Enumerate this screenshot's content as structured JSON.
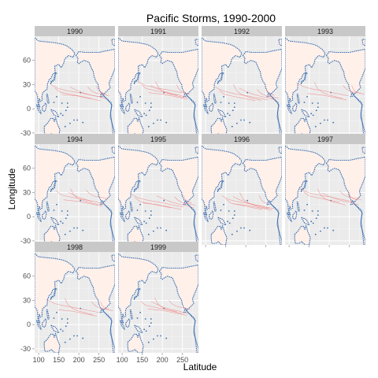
{
  "chart_data": {
    "type": "faceted-map",
    "title": "Pacific Storms, 1990-2000",
    "xlabel": "Latitude",
    "ylabel": "Longitude",
    "x_ticks": [
      100,
      150,
      200,
      250
    ],
    "y_ticks": [
      -30,
      0,
      30,
      60
    ],
    "xlim": [
      90,
      290
    ],
    "ylim": [
      -35,
      90
    ],
    "panels": [
      "1990",
      "1991",
      "1992",
      "1993",
      "1994",
      "1995",
      "1996",
      "1997",
      "1998",
      "1999"
    ],
    "colors": {
      "panel_background": "#ebebeb",
      "strip_background": "#c8c8c8",
      "land_fill": "#fff0ea",
      "coastline": "#3a6fb0",
      "storm_tracks": "#f08080"
    }
  }
}
